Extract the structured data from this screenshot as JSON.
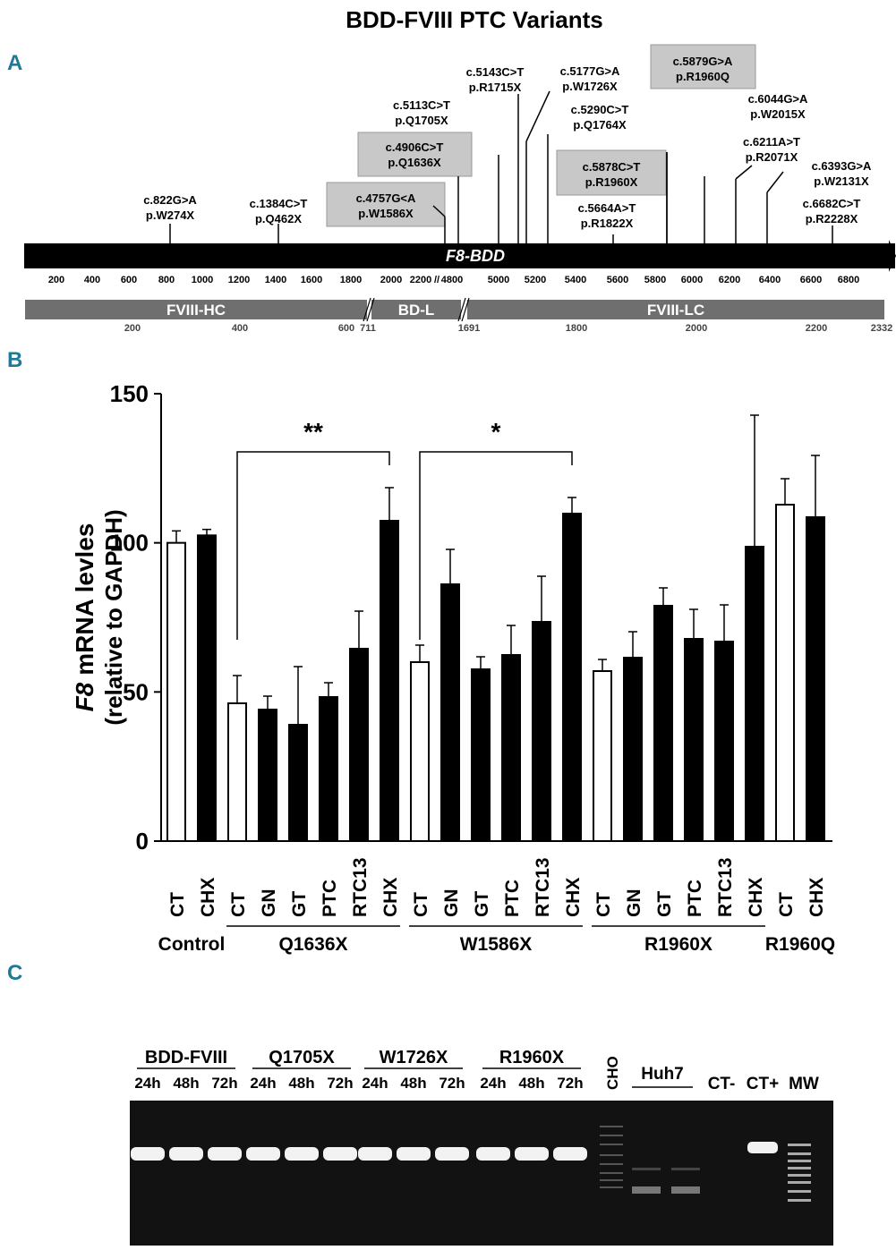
{
  "title": "BDD-FVIII PTC Variants",
  "panel_a": {
    "label": "A",
    "gene_label": "F8-BDD",
    "mutations": [
      {
        "cdna": "c.822G>A",
        "protein": "p.W274X",
        "boxed": false
      },
      {
        "cdna": "c.1384C>T",
        "protein": "p.Q462X",
        "boxed": false
      },
      {
        "cdna": "c.4757G<A",
        "protein": "p.W1586X",
        "boxed": true
      },
      {
        "cdna": "c.4906C>T",
        "protein": "p.Q1636X",
        "boxed": true
      },
      {
        "cdna": "c.5113C>T",
        "protein": "p.Q1705X",
        "boxed": false
      },
      {
        "cdna": "c.5143C>T",
        "protein": "p.R1715X",
        "boxed": false
      },
      {
        "cdna": "c.5177G>A",
        "protein": "p.W1726X",
        "boxed": false
      },
      {
        "cdna": "c.5290C>T",
        "protein": "p.Q1764X",
        "boxed": false
      },
      {
        "cdna": "c.5878C>T",
        "protein": "p.R1960X",
        "boxed": true
      },
      {
        "cdna": "c.5664A>T",
        "protein": "p.R1822X",
        "boxed": false
      },
      {
        "cdna": "c.5879G>A",
        "protein": "p.R1960Q",
        "boxed": true
      },
      {
        "cdna": "c.6044G>A",
        "protein": "p.W2015X",
        "boxed": false
      },
      {
        "cdna": "c.6211A>T",
        "protein": "p.R2071X",
        "boxed": false
      },
      {
        "cdna": "c.6393G>A",
        "protein": "p.W2131X",
        "boxed": false
      },
      {
        "cdna": "c.6682C>T",
        "protein": "p.R2228X",
        "boxed": false
      }
    ],
    "cdna_ticks": [
      "200",
      "400",
      "600",
      "800",
      "1000",
      "1200",
      "1400",
      "1600",
      "1800",
      "2000",
      "2200",
      "4800",
      "5000",
      "5200",
      "5400",
      "5600",
      "5800",
      "6000",
      "6200",
      "6400",
      "6600",
      "6800"
    ],
    "domains": [
      "FVIII-HC",
      "BD-L",
      "FVIII-LC"
    ],
    "protein_ticks": [
      "200",
      "400",
      "600",
      "711",
      "1691",
      "1800",
      "2000",
      "2200",
      "2332"
    ]
  },
  "chart_data": {
    "type": "bar",
    "label": "B",
    "ylabel_italic": "F8",
    "ylabel": "mRNA levles",
    "ylabel2": "(relative to GAPDH)",
    "ylim": [
      0,
      150
    ],
    "yticks": [
      0,
      50,
      100,
      150
    ],
    "groups": [
      {
        "name": "Control",
        "categories": [
          "CT",
          "CHX"
        ],
        "values": [
          100,
          102.5
        ],
        "errors": [
          4,
          2
        ],
        "colors": [
          "#ffffff",
          "#000000"
        ]
      },
      {
        "name": "Q1636X",
        "categories": [
          "CT",
          "GN",
          "GT",
          "PTC",
          "RTC13",
          "CHX"
        ],
        "values": [
          46.2,
          44.1,
          39,
          48.3,
          64.5,
          107.4
        ],
        "errors": [
          9.3,
          4.5,
          19.5,
          4.8,
          12.6,
          11.1
        ],
        "colors": [
          "#ffffff",
          "#000000",
          "#000000",
          "#000000",
          "#000000",
          "#000000"
        ]
      },
      {
        "name": "W1586X",
        "categories": [
          "CT",
          "GN",
          "GT",
          "PTC",
          "RTC13",
          "CHX"
        ],
        "values": [
          60,
          86.1,
          57.6,
          62.4,
          73.5,
          109.8
        ],
        "errors": [
          5.7,
          11.7,
          4.2,
          9.9,
          15.3,
          5.4
        ],
        "colors": [
          "#ffffff",
          "#000000",
          "#000000",
          "#000000",
          "#000000",
          "#000000"
        ]
      },
      {
        "name": "R1960X",
        "categories": [
          "CT",
          "GN",
          "GT",
          "PTC",
          "RTC13",
          "CHX"
        ],
        "values": [
          57,
          61.5,
          78.9,
          67.8,
          66.9,
          98.7
        ],
        "errors": [
          3.9,
          8.7,
          6,
          9.9,
          12.3,
          44.1
        ],
        "colors": [
          "#ffffff",
          "#000000",
          "#000000",
          "#000000",
          "#000000",
          "#000000"
        ]
      },
      {
        "name": "R1960Q",
        "categories": [
          "CT",
          "CHX"
        ],
        "values": [
          112.8,
          108.6
        ],
        "errors": [
          8.7,
          20.7
        ],
        "colors": [
          "#ffffff",
          "#000000"
        ]
      }
    ],
    "annotations": [
      "**",
      "*"
    ]
  },
  "panel_c": {
    "label": "C",
    "groups": [
      {
        "name": "BDD-FVIII",
        "times": [
          "24h",
          "48h",
          "72h"
        ]
      },
      {
        "name": "Q1705X",
        "times": [
          "24h",
          "48h",
          "72h"
        ]
      },
      {
        "name": "W1726X",
        "times": [
          "24h",
          "48h",
          "72h"
        ]
      },
      {
        "name": "R1960X",
        "times": [
          "24h",
          "48h",
          "72h"
        ]
      }
    ],
    "cho": "CHO",
    "huh7": "Huh7",
    "ct_neg": "CT-",
    "ct_pos": "CT+",
    "mw": "MW"
  }
}
